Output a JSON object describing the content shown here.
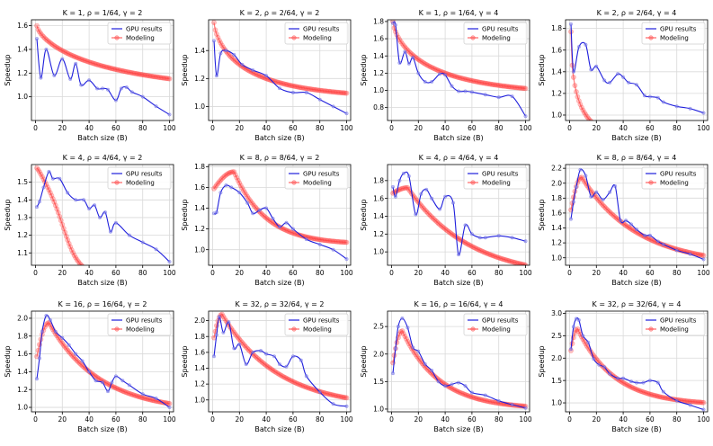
{
  "figure": {
    "legend_labels": [
      "GPU results",
      "Modeling"
    ],
    "gpu_color": "#1f1fdc",
    "model_color": "#ff4040"
  },
  "chart_data": [
    {
      "type": "line",
      "title": "K = 1, ρ = 1/64, γ = 2",
      "xlabel": "Batch size (B)",
      "ylabel": "Speedup",
      "xlim": [
        -3,
        103
      ],
      "ylim": [
        0.8,
        1.65
      ],
      "xticks": [
        0,
        20,
        40,
        60,
        80,
        100
      ],
      "yticks": [
        1.0,
        1.2,
        1.4,
        1.6
      ],
      "ytick_labels": [
        "1.0",
        "1.2",
        "1.4",
        "1.6"
      ],
      "legend": "top-right",
      "series": [
        {
          "name": "GPU results",
          "x": [
            1,
            4,
            8,
            14,
            20,
            26,
            30,
            34,
            40,
            46,
            50,
            54,
            60,
            64,
            68,
            72,
            80,
            90,
            100
          ],
          "y": [
            1.49,
            1.16,
            1.4,
            1.18,
            1.32,
            1.15,
            1.28,
            1.1,
            1.14,
            1.07,
            1.07,
            1.06,
            0.97,
            1.07,
            1.08,
            1.04,
            1.0,
            0.92,
            0.85
          ]
        },
        {
          "name": "Modeling",
          "model": "decay",
          "params": {
            "a": 1.0,
            "b": 0.6,
            "c": 0.055,
            "p": 0.7,
            "x0": 1
          }
        }
      ]
    },
    {
      "type": "line",
      "title": "K = 2, ρ = 2/64, γ = 2",
      "xlabel": "Batch size (B)",
      "ylabel": "Speedup",
      "xlim": [
        -3,
        103
      ],
      "ylim": [
        0.9,
        1.62
      ],
      "xticks": [
        0,
        20,
        40,
        60,
        80,
        100
      ],
      "yticks": [
        1.0,
        1.2,
        1.4
      ],
      "ytick_labels": [
        "1.0",
        "1.2",
        "1.4"
      ],
      "legend": "top-right",
      "series": [
        {
          "name": "GPU results",
          "x": [
            1,
            3,
            6,
            10,
            16,
            22,
            30,
            40,
            50,
            60,
            70,
            80,
            90,
            100
          ],
          "y": [
            1.47,
            1.22,
            1.38,
            1.4,
            1.37,
            1.3,
            1.26,
            1.22,
            1.13,
            1.1,
            1.1,
            1.05,
            1.0,
            0.95
          ]
        },
        {
          "name": "Modeling",
          "model": "decay",
          "params": {
            "a": 1.05,
            "b": 0.55,
            "c": 0.1,
            "p": 0.7,
            "x0": 1
          }
        }
      ]
    },
    {
      "type": "line",
      "title": "K = 1, ρ = 1/64, γ = 4",
      "xlabel": "Batch size (B)",
      "ylabel": "Speedup",
      "xlim": [
        -3,
        103
      ],
      "ylim": [
        0.65,
        1.82
      ],
      "xticks": [
        0,
        20,
        40,
        60,
        80,
        100
      ],
      "yticks": [
        0.8,
        1.0,
        1.2,
        1.4,
        1.6,
        1.8
      ],
      "ytick_labels": [
        "0.8",
        "1.0",
        "1.2",
        "1.4",
        "1.6",
        "1.8"
      ],
      "legend": "top-right",
      "series": [
        {
          "name": "GPU results",
          "x": [
            1,
            3,
            6,
            10,
            13,
            16,
            20,
            25,
            30,
            36,
            40,
            45,
            50,
            55,
            60,
            70,
            80,
            90,
            100
          ],
          "y": [
            1.78,
            1.76,
            1.32,
            1.45,
            1.31,
            1.38,
            1.2,
            1.1,
            1.1,
            1.19,
            1.18,
            1.05,
            0.99,
            0.99,
            0.98,
            0.95,
            0.92,
            0.93,
            0.7
          ]
        },
        {
          "name": "Modeling",
          "model": "decay",
          "params": {
            "a": 0.93,
            "b": 0.87,
            "c": 0.09,
            "p": 0.7,
            "x0": 1
          }
        }
      ]
    },
    {
      "type": "line",
      "title": "K = 2, ρ = 2/64, γ = 4",
      "xlabel": "Batch size (B)",
      "ylabel": "Speedup",
      "xlim": [
        -3,
        103
      ],
      "ylim": [
        0.95,
        1.88
      ],
      "xticks": [
        0,
        20,
        40,
        60,
        80,
        100
      ],
      "yticks": [
        1.0,
        1.2,
        1.4,
        1.6,
        1.8
      ],
      "ytick_labels": [
        "1.0",
        "1.2",
        "1.4",
        "1.6",
        "1.8"
      ],
      "legend": "top-right",
      "series": [
        {
          "name": "GPU results",
          "x": [
            1,
            3,
            7,
            12,
            16,
            20,
            26,
            30,
            36,
            40,
            44,
            50,
            56,
            60,
            66,
            70,
            80,
            90,
            100
          ],
          "y": [
            1.84,
            1.4,
            1.63,
            1.65,
            1.42,
            1.45,
            1.32,
            1.3,
            1.38,
            1.35,
            1.3,
            1.28,
            1.18,
            1.17,
            1.16,
            1.12,
            1.08,
            1.06,
            1.02
          ]
        },
        {
          "name": "Modeling",
          "model": "decay",
          "params": {
            "a": 0.72,
            "b": 1.05,
            "c": 0.35,
            "p": 0.55,
            "x0": 1
          }
        }
      ]
    },
    {
      "type": "line",
      "title": "K = 4, ρ = 4/64, γ = 2",
      "xlabel": "Batch size (B)",
      "ylabel": "Speedup",
      "xlim": [
        -3,
        103
      ],
      "ylim": [
        1.03,
        1.6
      ],
      "xticks": [
        0,
        20,
        40,
        60,
        80,
        100
      ],
      "yticks": [
        1.1,
        1.2,
        1.3,
        1.4,
        1.5
      ],
      "ytick_labels": [
        "1.1",
        "1.2",
        "1.3",
        "1.4",
        "1.5"
      ],
      "legend": "top-right",
      "series": [
        {
          "name": "GPU results",
          "x": [
            1,
            3,
            6,
            10,
            13,
            18,
            24,
            30,
            36,
            40,
            44,
            48,
            52,
            56,
            60,
            70,
            80,
            90,
            100
          ],
          "y": [
            1.36,
            1.39,
            1.47,
            1.56,
            1.52,
            1.52,
            1.44,
            1.4,
            1.4,
            1.35,
            1.37,
            1.3,
            1.33,
            1.22,
            1.27,
            1.2,
            1.16,
            1.12,
            1.05
          ]
        },
        {
          "name": "Modeling",
          "model": "decay",
          "params": {
            "a": 0.95,
            "b": 0.6,
            "c": 0.015,
            "p": 1.4,
            "x0": 1,
            "y0": 1.57,
            "bump": 0.1,
            "bumpc": 15,
            "bumpw": 11,
            "vmin": 1.52
          }
        }
      ]
    },
    {
      "type": "line",
      "title": "K = 8, ρ = 8/64, γ = 2",
      "xlabel": "Batch size (B)",
      "ylabel": "Speedup",
      "xlim": [
        -3,
        103
      ],
      "ylim": [
        0.85,
        1.82
      ],
      "xticks": [
        0,
        20,
        40,
        60,
        80,
        100
      ],
      "yticks": [
        1.0,
        1.2,
        1.4,
        1.6,
        1.8
      ],
      "ytick_labels": [
        "1.0",
        "1.2",
        "1.4",
        "1.6",
        "1.8"
      ],
      "legend": "top-right",
      "series": [
        {
          "name": "GPU results",
          "x": [
            1,
            3,
            6,
            10,
            14,
            20,
            26,
            30,
            35,
            40,
            45,
            50,
            55,
            60,
            70,
            80,
            90,
            100
          ],
          "y": [
            1.35,
            1.36,
            1.55,
            1.62,
            1.6,
            1.55,
            1.45,
            1.35,
            1.38,
            1.4,
            1.3,
            1.22,
            1.26,
            1.2,
            1.1,
            1.05,
            1.0,
            0.91
          ]
        },
        {
          "name": "Modeling",
          "model": "hump",
          "params": {
            "y0": 1.57,
            "peak": 1.75,
            "xp": 16,
            "rise": 0.5,
            "tail": 1.05,
            "k": 0.035
          }
        }
      ]
    },
    {
      "type": "line",
      "title": "K = 4, ρ = 4/64, γ = 4",
      "xlabel": "Batch size (B)",
      "ylabel": "Speedup",
      "xlim": [
        -3,
        103
      ],
      "ylim": [
        0.85,
        1.98
      ],
      "xticks": [
        0,
        20,
        40,
        60,
        80,
        100
      ],
      "yticks": [
        1.0,
        1.2,
        1.4,
        1.6,
        1.8
      ],
      "ytick_labels": [
        "1.0",
        "1.2",
        "1.4",
        "1.6",
        "1.8"
      ],
      "legend": "top-right",
      "series": [
        {
          "name": "GPU results",
          "x": [
            1,
            3,
            6,
            9,
            13,
            18,
            22,
            26,
            30,
            36,
            40,
            46,
            50,
            55,
            60,
            66,
            70,
            80,
            90,
            100
          ],
          "y": [
            1.73,
            1.62,
            1.8,
            1.88,
            1.85,
            1.42,
            1.65,
            1.7,
            1.6,
            1.48,
            1.62,
            1.55,
            0.97,
            1.3,
            1.2,
            1.16,
            1.16,
            1.18,
            1.16,
            1.12
          ]
        },
        {
          "name": "Modeling",
          "model": "hump",
          "params": {
            "y0": 1.65,
            "peak": 1.72,
            "xp": 12,
            "rise": 0.3,
            "tail": 0.7,
            "k": 0.018
          }
        }
      ]
    },
    {
      "type": "line",
      "title": "K = 8, ρ = 8/64, γ = 4",
      "xlabel": "Batch size (B)",
      "ylabel": "Speedup",
      "xlim": [
        -3,
        103
      ],
      "ylim": [
        0.9,
        2.25
      ],
      "xticks": [
        0,
        20,
        40,
        60,
        80,
        100
      ],
      "yticks": [
        1.0,
        1.2,
        1.4,
        1.6,
        1.8,
        2.0,
        2.2
      ],
      "ytick_labels": [
        "1.0",
        "1.2",
        "1.4",
        "1.6",
        "1.8",
        "2.0",
        "2.2"
      ],
      "legend": "top-right",
      "series": [
        {
          "name": "GPU results",
          "x": [
            1,
            3,
            5,
            8,
            12,
            16,
            20,
            25,
            30,
            34,
            38,
            42,
            46,
            50,
            56,
            60,
            66,
            70,
            80,
            90,
            100
          ],
          "y": [
            1.52,
            1.75,
            1.95,
            2.18,
            2.1,
            1.82,
            1.88,
            1.78,
            1.88,
            1.96,
            1.5,
            1.5,
            1.45,
            1.38,
            1.3,
            1.3,
            1.22,
            1.18,
            1.1,
            1.05,
            0.98
          ]
        },
        {
          "name": "Modeling",
          "model": "hump",
          "params": {
            "y0": 1.55,
            "peak": 2.08,
            "xp": 9,
            "rise": 0.75,
            "tail": 0.9,
            "k": 0.02
          }
        }
      ]
    },
    {
      "type": "line",
      "title": "K = 16, ρ = 16/64, γ = 2",
      "xlabel": "Batch size (B)",
      "ylabel": "Speedup",
      "xlim": [
        -3,
        103
      ],
      "ylim": [
        0.95,
        2.08
      ],
      "xticks": [
        0,
        20,
        40,
        60,
        80,
        100
      ],
      "yticks": [
        1.0,
        1.2,
        1.4,
        1.6,
        1.8,
        2.0
      ],
      "ytick_labels": [
        "1.0",
        "1.2",
        "1.4",
        "1.6",
        "1.8",
        "2.0"
      ],
      "legend": "top-right",
      "series": [
        {
          "name": "GPU results",
          "x": [
            1,
            3,
            5,
            8,
            11,
            15,
            20,
            25,
            30,
            35,
            40,
            45,
            50,
            54,
            57,
            60,
            65,
            70,
            80,
            90,
            100
          ],
          "y": [
            1.32,
            1.55,
            1.85,
            2.03,
            1.98,
            1.85,
            1.78,
            1.7,
            1.6,
            1.52,
            1.4,
            1.3,
            1.28,
            1.18,
            1.28,
            1.35,
            1.3,
            1.25,
            1.15,
            1.1,
            1.0
          ]
        },
        {
          "name": "Modeling",
          "model": "hump",
          "params": {
            "y0": 1.5,
            "peak": 1.95,
            "xp": 10,
            "rise": 0.6,
            "tail": 0.95,
            "k": 0.022
          }
        }
      ]
    },
    {
      "type": "line",
      "title": "K = 32, ρ = 32/64, γ = 2",
      "xlabel": "Batch size (B)",
      "ylabel": "Speedup",
      "xlim": [
        -3,
        103
      ],
      "ylim": [
        0.85,
        2.12
      ],
      "xticks": [
        0,
        20,
        40,
        60,
        80,
        100
      ],
      "yticks": [
        1.0,
        1.2,
        1.4,
        1.6,
        1.8,
        2.0
      ],
      "ytick_labels": [
        "1.0",
        "1.2",
        "1.4",
        "1.6",
        "1.8",
        "2.0"
      ],
      "legend": "top-right",
      "series": [
        {
          "name": "GPU results",
          "x": [
            1,
            3,
            5,
            8,
            12,
            16,
            20,
            25,
            30,
            36,
            40,
            46,
            50,
            55,
            60,
            66,
            70,
            80,
            90,
            100
          ],
          "y": [
            1.55,
            1.82,
            2.05,
            1.85,
            1.98,
            1.65,
            1.7,
            1.45,
            1.6,
            1.62,
            1.58,
            1.55,
            1.45,
            1.42,
            1.55,
            1.5,
            1.3,
            1.1,
            0.95,
            0.92
          ]
        },
        {
          "name": "Modeling",
          "model": "hump",
          "params": {
            "y0": 1.7,
            "peak": 2.08,
            "xp": 7,
            "rise": 0.8,
            "tail": 0.9,
            "k": 0.02
          }
        }
      ]
    },
    {
      "type": "line",
      "title": "K = 16, ρ = 16/64, γ = 4",
      "xlabel": "Batch size (B)",
      "ylabel": "Speedup",
      "xlim": [
        -3,
        103
      ],
      "ylim": [
        0.95,
        2.78
      ],
      "xticks": [
        0,
        20,
        40,
        60,
        80,
        100
      ],
      "yticks": [
        1.0,
        1.5,
        2.0,
        2.5
      ],
      "ytick_labels": [
        "1.0",
        "1.5",
        "2.0",
        "2.5"
      ],
      "legend": "top-right",
      "series": [
        {
          "name": "GPU results",
          "x": [
            1,
            3,
            5,
            8,
            12,
            16,
            20,
            25,
            30,
            35,
            40,
            45,
            50,
            55,
            60,
            70,
            80,
            90,
            100
          ],
          "y": [
            1.65,
            2.1,
            2.5,
            2.65,
            2.48,
            2.12,
            2.05,
            1.82,
            1.7,
            1.5,
            1.42,
            1.45,
            1.48,
            1.42,
            1.3,
            1.25,
            1.15,
            1.08,
            1.02
          ]
        },
        {
          "name": "Modeling",
          "model": "hump",
          "params": {
            "y0": 1.7,
            "peak": 2.42,
            "xp": 8,
            "rise": 0.8,
            "tail": 1.0,
            "k": 0.03
          }
        }
      ]
    },
    {
      "type": "line",
      "title": "K = 32, ρ = 32/64, γ = 4",
      "xlabel": "Batch size (B)",
      "ylabel": "Speedup",
      "xlim": [
        -3,
        103
      ],
      "ylim": [
        0.8,
        3.05
      ],
      "xticks": [
        0,
        20,
        40,
        60,
        80,
        100
      ],
      "yticks": [
        1.0,
        1.5,
        2.0,
        2.5,
        3.0
      ],
      "ytick_labels": [
        "1.0",
        "1.5",
        "2.0",
        "2.5",
        "3.0"
      ],
      "legend": "top-right",
      "series": [
        {
          "name": "GPU results",
          "x": [
            1,
            3,
            5,
            7,
            10,
            14,
            18,
            22,
            26,
            30,
            36,
            40,
            46,
            50,
            55,
            60,
            66,
            70,
            80,
            90,
            100
          ],
          "y": [
            2.2,
            2.7,
            2.88,
            2.85,
            2.5,
            2.35,
            1.98,
            1.85,
            1.8,
            1.65,
            1.55,
            1.55,
            1.48,
            1.45,
            1.45,
            1.5,
            1.45,
            1.25,
            1.05,
            0.95,
            0.85
          ]
        },
        {
          "name": "Modeling",
          "model": "hump",
          "params": {
            "y0": 2.0,
            "peak": 2.65,
            "xp": 6,
            "rise": 0.8,
            "tail": 0.95,
            "k": 0.03
          }
        }
      ]
    }
  ]
}
